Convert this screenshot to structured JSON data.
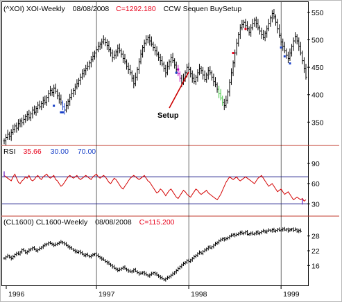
{
  "colors": {
    "frame": "#b7b7b7",
    "divider": "#c0392b",
    "bars": "#000000",
    "rsi_line": "#d40000",
    "ref_line": "#1e1e8a",
    "neg": "#e8001a",
    "blue": "#1840c8",
    "setup_arrow": "#cc0000",
    "green_bar": "#3cc23c",
    "magenta_bar": "#c000c0",
    "purple_bar": "#7a3cc8"
  },
  "header_top": {
    "ticker": "(^XOI) XOI-Weekly",
    "date": "08/08/2008",
    "close": "C=1292.180",
    "study": "CCW Sequen BuySetup"
  },
  "rsi_header": {
    "label": "RSI",
    "value": "35.66",
    "lower": "30.00",
    "upper": "70.00"
  },
  "header_bottom": {
    "ticker": "(CL1600) CL1600-Weekly",
    "date": "08/08/2008",
    "close": "C=115.200"
  },
  "annotation": "Setup",
  "chart_data": [
    {
      "type": "ohlc",
      "panel": "price",
      "title": "(^XOI) XOI-Weekly",
      "y_ticks": [
        350,
        400,
        450,
        500,
        550
      ],
      "ylim": [
        310,
        560
      ],
      "x_tick_labels": [
        "1996",
        "1997",
        "1998",
        "1999"
      ],
      "closes": [
        316,
        322,
        328,
        324,
        331,
        337,
        343,
        339,
        347,
        352,
        349,
        355,
        360,
        364,
        358,
        365,
        372,
        368,
        375,
        381,
        378,
        384,
        390,
        386,
        395,
        402,
        408,
        404,
        412,
        406,
        398,
        392,
        385,
        378,
        372,
        380,
        388,
        395,
        402,
        408,
        414,
        420,
        426,
        432,
        438,
        444,
        448,
        452,
        458,
        464,
        470,
        476,
        482,
        488,
        492,
        496,
        500,
        495,
        490,
        482,
        476,
        468,
        472,
        478,
        485,
        480,
        474,
        466,
        460,
        452,
        446,
        440,
        430,
        420,
        432,
        446,
        460,
        474,
        486,
        494,
        500,
        504,
        498,
        492,
        486,
        480,
        474,
        468,
        462,
        456,
        448,
        440,
        452,
        460,
        468,
        462,
        454,
        446,
        438,
        430,
        422,
        430,
        440,
        450,
        446,
        438,
        430,
        424,
        432,
        440,
        448,
        444,
        436,
        428,
        436,
        444,
        440,
        432,
        424,
        418,
        410,
        402,
        394,
        386,
        380,
        390,
        405,
        422,
        440,
        458,
        476,
        494,
        510,
        522,
        528,
        532,
        526,
        520,
        514,
        522,
        530,
        536,
        530,
        522,
        516,
        510,
        504,
        512,
        520,
        530,
        540,
        548,
        542,
        532,
        520,
        508,
        496,
        488,
        480,
        472,
        466,
        476,
        488,
        498,
        506,
        498,
        488,
        476,
        462,
        448,
        432
      ],
      "series_colors": [
        {
          "from": 33,
          "to": 34,
          "color": "blue"
        },
        {
          "from": 98,
          "to": 99,
          "color": "magenta_bar"
        },
        {
          "from": 121,
          "to": 123,
          "color": "green_bar"
        }
      ],
      "markers": [
        {
          "i": 28,
          "value": 380,
          "color": "blue"
        },
        {
          "i": 32,
          "value": 368,
          "color": "blue"
        },
        {
          "i": 33,
          "value": 368,
          "color": "blue"
        },
        {
          "i": 97,
          "value": 440,
          "color": "blue"
        },
        {
          "i": 98,
          "value": 446,
          "color": "magenta_bar"
        },
        {
          "i": 129,
          "value": 476,
          "color": "neg"
        },
        {
          "i": 136,
          "value": 520,
          "color": "neg"
        },
        {
          "i": 156,
          "value": 486,
          "color": "blue"
        },
        {
          "i": 158,
          "value": 470,
          "color": "blue"
        },
        {
          "i": 161,
          "value": 457,
          "color": "blue"
        }
      ]
    },
    {
      "type": "line",
      "panel": "rsi",
      "title": "RSI",
      "y_ticks": [
        30,
        60,
        90
      ],
      "ylim": [
        18,
        98
      ],
      "ref_lines": [
        30,
        70
      ],
      "current": 35.66,
      "values": [
        72,
        70,
        68,
        66,
        64,
        70,
        74,
        68,
        62,
        60,
        64,
        66,
        70,
        68,
        72,
        66,
        64,
        66,
        70,
        72,
        68,
        66,
        70,
        72,
        74,
        70,
        68,
        70,
        72,
        66,
        64,
        60,
        56,
        58,
        62,
        66,
        70,
        72,
        70,
        68,
        70,
        72,
        68,
        66,
        68,
        70,
        72,
        70,
        68,
        66,
        70,
        72,
        74,
        70,
        68,
        70,
        72,
        70,
        66,
        62,
        60,
        64,
        68,
        66,
        62,
        58,
        54,
        52,
        56,
        60,
        64,
        68,
        70,
        72,
        70,
        68,
        66,
        68,
        70,
        72,
        68,
        64,
        62,
        58,
        54,
        50,
        46,
        48,
        52,
        50,
        46,
        42,
        46,
        50,
        52,
        48,
        44,
        40,
        38,
        42,
        46,
        50,
        48,
        44,
        42,
        40,
        44,
        48,
        52,
        50,
        46,
        44,
        46,
        48,
        50,
        46,
        44,
        42,
        40,
        38,
        36,
        40,
        44,
        50,
        56,
        62,
        66,
        70,
        68,
        66,
        68,
        70,
        66,
        64,
        66,
        68,
        70,
        68,
        66,
        64,
        62,
        60,
        64,
        68,
        70,
        72,
        68,
        64,
        60,
        56,
        58,
        60,
        56,
        52,
        48,
        50,
        52,
        48,
        44,
        46,
        48,
        44,
        40,
        36,
        38,
        40,
        38,
        36,
        38,
        34,
        36
      ],
      "markers": [
        {
          "i": 0,
          "value": 74,
          "color": "purple_bar"
        },
        {
          "i": 168,
          "value": 33,
          "color": "purple_bar"
        }
      ]
    },
    {
      "type": "ohlc",
      "panel": "oil",
      "title": "(CL1600) CL1600-Weekly",
      "y_ticks": [
        16,
        22,
        28
      ],
      "ylim": [
        8.5,
        31
      ],
      "closes": [
        19,
        19.5,
        20,
        19.4,
        18.8,
        19.6,
        20.5,
        21,
        20.6,
        21.5,
        22.4,
        22,
        21.2,
        21.6,
        22.3,
        22.8,
        23.2,
        22.6,
        22,
        22.4,
        23,
        23.5,
        24,
        24.4,
        24.8,
        25.2,
        25,
        24.6,
        24.2,
        24.6,
        25,
        25.3,
        25.6,
        25.2,
        24.8,
        24.2,
        23.6,
        23.2,
        22.7,
        22.2,
        21.7,
        21.3,
        21.8,
        21.2,
        20.6,
        20.1,
        20.5,
        20,
        19.6,
        20,
        20.4,
        20.8,
        20.2,
        19.6,
        19.1,
        18.6,
        18.2,
        17.6,
        17.1,
        16.6,
        16.1,
        15.5,
        14.9,
        14.5,
        14,
        14.4,
        14.9,
        15.3,
        14.7,
        14.2,
        13.8,
        13.4,
        13.8,
        14.3,
        13.7,
        13.1,
        12.6,
        12.9,
        13.3,
        12.7,
        12.2,
        11.8,
        12.2,
        12.7,
        13.1,
        12.6,
        12.1,
        11.6,
        11.1,
        10.6,
        10.2,
        10.6,
        11.1,
        11.6,
        12.1,
        12.7,
        13.4,
        14,
        14.8,
        15.6,
        16.2,
        16.8,
        17.4,
        18,
        17.6,
        18.3,
        18.9,
        19.6,
        20.2,
        20.8,
        21.4,
        21,
        21.7,
        22.3,
        22.9,
        23.5,
        23.1,
        23.7,
        24.3,
        24.9,
        25.4,
        26,
        26.5,
        27,
        26.5,
        26.9,
        27.4,
        27.9,
        28.3,
        28.7,
        28.2,
        28.6,
        29.1,
        29.5,
        28.9,
        29.3,
        29.7,
        28.6,
        28.9,
        29.2,
        28.7,
        29.1,
        29.6,
        28.9,
        29.4,
        29.8,
        30.1,
        29.6,
        30,
        30.4,
        30.1,
        30.6,
        29.9,
        30.3,
        30.7,
        30.2,
        30.5,
        30.9,
        30.4,
        30.8,
        30.1,
        30.5,
        30.9,
        30.3,
        30.7,
        29.9,
        30.3,
        29.8
      ]
    }
  ]
}
